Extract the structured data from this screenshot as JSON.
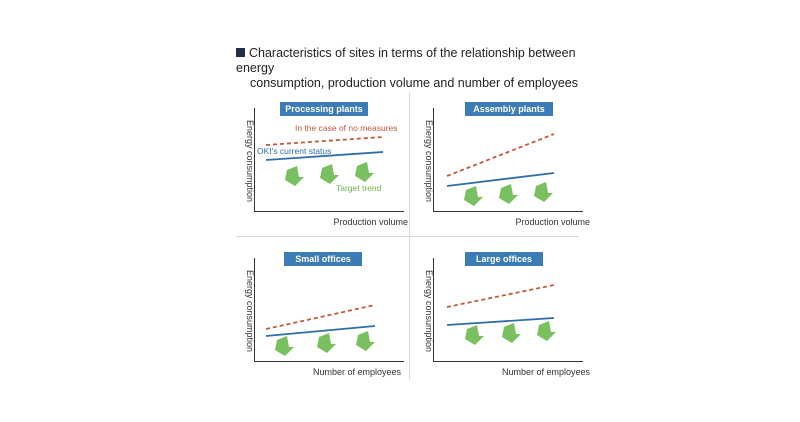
{
  "title": {
    "line1": "Characteristics of sites in terms of the relationship between energy",
    "line2": "consumption, production volume and number of employees"
  },
  "colors": {
    "panel_title_bg": "#3b7cb6",
    "no_measures_line": "#c25a3a",
    "current_status_line": "#2f6fa9",
    "target_arrow": "#78c060"
  },
  "panels": [
    {
      "title": "Processing plants",
      "ylabel": "Energy consumption",
      "xlabel": "Production volume"
    },
    {
      "title": "Assembly plants",
      "ylabel": "Energy consumption",
      "xlabel": "Production volume"
    },
    {
      "title": "Small offices",
      "ylabel": "Energy consumption",
      "xlabel": "Number of employees"
    },
    {
      "title": "Large offices",
      "ylabel": "Energy consumption",
      "xlabel": "Number of employees"
    }
  ],
  "annotations": {
    "no_measures": "In the case of no measures",
    "current_status": "OKI's current status",
    "target_trend": "Target trend"
  }
}
